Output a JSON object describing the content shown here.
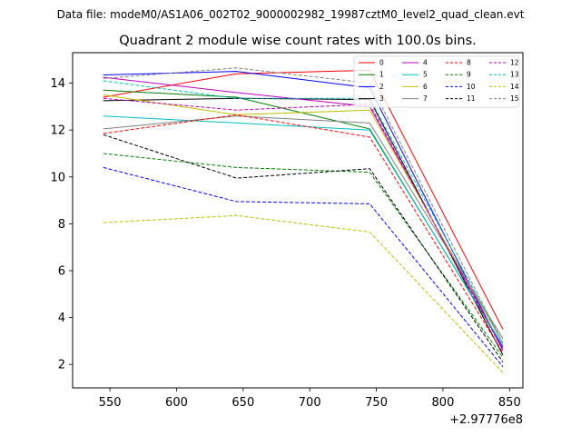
{
  "chart_data": {
    "type": "line",
    "suptitle": "Data file: modeM0/AS1A06_002T02_9000002982_19987cztM0_level2_quad_clean.evt",
    "title": "Quadrant 2 module wise count rates with 100.0s bins.",
    "xlabel": "",
    "ylabel": "",
    "x_offset_label": "+2.97776e8",
    "x": [
      545,
      645,
      745,
      845
    ],
    "xlim": [
      522,
      860
    ],
    "ylim": [
      1.0,
      15.3
    ],
    "xticks": [
      550,
      600,
      650,
      700,
      750,
      800,
      850
    ],
    "yticks": [
      2,
      4,
      6,
      8,
      10,
      12,
      14
    ],
    "legend_position": "top-right",
    "legend_columns": 4,
    "series": [
      {
        "name": "0",
        "color": "#ff0000",
        "style": "solid",
        "values": [
          13.4,
          14.4,
          14.55,
          3.5
        ]
      },
      {
        "name": "1",
        "color": "#008000",
        "style": "solid",
        "values": [
          13.7,
          13.4,
          12.05,
          2.75
        ]
      },
      {
        "name": "2",
        "color": "#0000ff",
        "style": "solid",
        "values": [
          14.35,
          14.5,
          13.8,
          2.6
        ]
      },
      {
        "name": "3",
        "color": "#000000",
        "style": "solid",
        "values": [
          13.25,
          13.35,
          13.3,
          2.4
        ]
      },
      {
        "name": "4",
        "color": "#bf00bf",
        "style": "solid",
        "values": [
          14.25,
          13.6,
          13.0,
          2.7
        ]
      },
      {
        "name": "5",
        "color": "#00bfbf",
        "style": "solid",
        "values": [
          12.6,
          12.3,
          12.0,
          2.8
        ]
      },
      {
        "name": "6",
        "color": "#bfbf00",
        "style": "solid",
        "values": [
          13.5,
          12.65,
          12.85,
          2.9
        ]
      },
      {
        "name": "7",
        "color": "#808080",
        "style": "solid",
        "values": [
          12.05,
          12.6,
          12.3,
          3.1
        ]
      },
      {
        "name": "8",
        "color": "#ff0000",
        "style": "dashed",
        "values": [
          11.85,
          12.65,
          11.7,
          2.5
        ]
      },
      {
        "name": "9",
        "color": "#008000",
        "style": "dashed",
        "values": [
          11.0,
          10.4,
          10.2,
          2.3
        ]
      },
      {
        "name": "10",
        "color": "#0000ff",
        "style": "dashed",
        "values": [
          10.4,
          8.95,
          8.85,
          1.9
        ]
      },
      {
        "name": "11",
        "color": "#000000",
        "style": "dashed",
        "values": [
          11.8,
          9.95,
          10.35,
          2.1
        ]
      },
      {
        "name": "12",
        "color": "#bf00bf",
        "style": "dashed",
        "values": [
          13.35,
          12.85,
          13.1,
          2.6
        ]
      },
      {
        "name": "13",
        "color": "#00bfbf",
        "style": "dashed",
        "values": [
          14.1,
          13.35,
          13.35,
          2.9
        ]
      },
      {
        "name": "14",
        "color": "#bfbf00",
        "style": "dashed",
        "values": [
          8.05,
          8.35,
          7.65,
          1.65
        ]
      },
      {
        "name": "15",
        "color": "#808080",
        "style": "dashed",
        "values": [
          14.2,
          14.65,
          14.0,
          2.9
        ]
      }
    ]
  }
}
